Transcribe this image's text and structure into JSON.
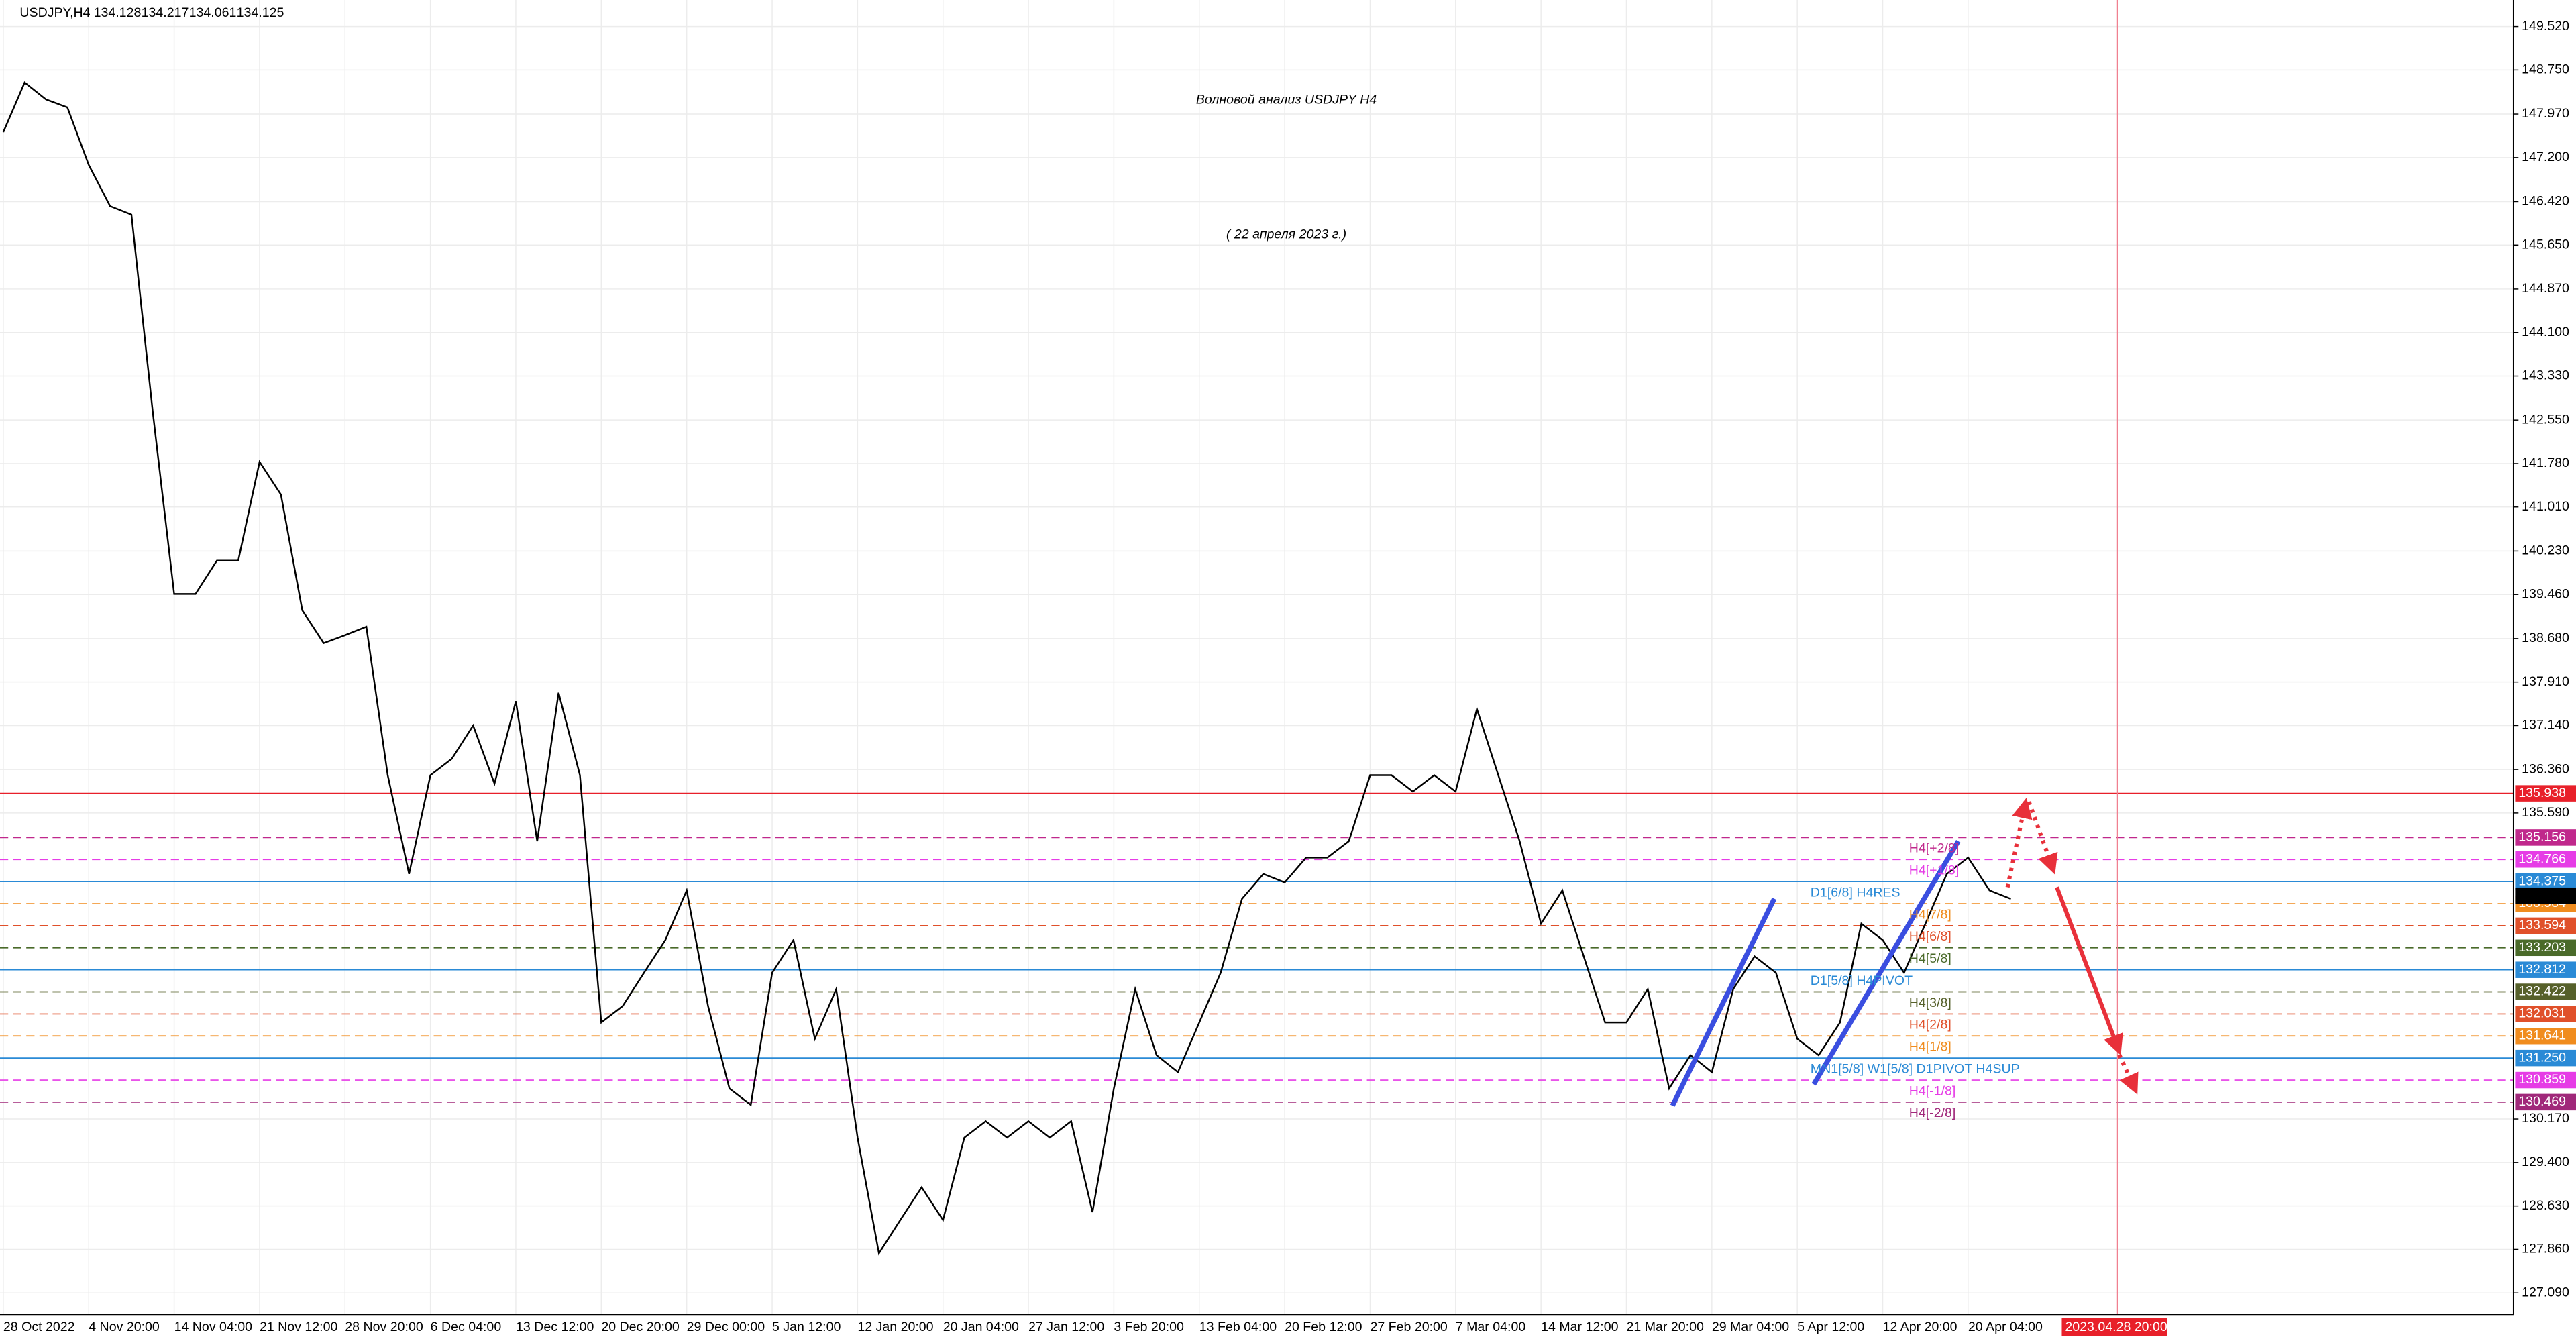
{
  "chart_data": {
    "type": "line",
    "header": {
      "symbol": "USDJPY,H4",
      "ohlc": [
        134.128,
        134.217,
        134.061,
        134.125
      ]
    },
    "title": "Волновой анализ USDJPY H4",
    "subtitle": "( 22 апреля 2023 г.)",
    "color": "#000000",
    "categories": [
      "28 Oct 2022",
      null,
      null,
      null,
      "4 Nov 20:00",
      null,
      null,
      null,
      "14 Nov 04:00",
      null,
      null,
      null,
      "21 Nov 12:00",
      null,
      null,
      null,
      "28 Nov 20:00",
      null,
      null,
      null,
      "6 Dec 04:00",
      null,
      null,
      null,
      "13 Dec 12:00",
      null,
      null,
      null,
      "20 Dec 20:00",
      null,
      null,
      null,
      "29 Dec 00:00",
      null,
      null,
      null,
      "5 Jan 12:00",
      null,
      null,
      null,
      "12 Jan 20:00",
      null,
      null,
      null,
      "20 Jan 04:00",
      null,
      null,
      null,
      "27 Jan 12:00",
      null,
      null,
      null,
      "3 Feb 20:00",
      null,
      null,
      null,
      "13 Feb 04:00",
      null,
      null,
      null,
      "20 Feb 12:00",
      null,
      null,
      null,
      "27 Feb 20:00",
      null,
      null,
      null,
      "7 Mar 04:00",
      null,
      null,
      null,
      "14 Mar 12:00",
      null,
      null,
      null,
      "21 Mar 20:00",
      null,
      null,
      null,
      "29 Mar 04:00",
      null,
      null,
      null,
      "5 Apr 12:00",
      null,
      null,
      null,
      "12 Apr 20:00",
      null,
      null,
      null,
      "20 Apr 04:00",
      null,
      null,
      null,
      null,
      null,
      null,
      "2023.04.28 20:00"
    ],
    "values": [
      147.65,
      148.53,
      148.23,
      148.09,
      147.07,
      146.34,
      146.19,
      142.69,
      139.47,
      139.47,
      140.06,
      140.06,
      141.81,
      141.23,
      139.18,
      138.6,
      138.74,
      138.89,
      136.26,
      134.51,
      136.26,
      136.55,
      137.14,
      136.11,
      137.57,
      135.09,
      137.72,
      136.26,
      131.88,
      132.17,
      132.76,
      133.34,
      134.22,
      132.17,
      130.71,
      130.42,
      132.76,
      133.34,
      131.59,
      132.47,
      129.84,
      127.79,
      128.38,
      128.96,
      128.38,
      129.84,
      130.13,
      129.84,
      130.13,
      129.84,
      130.13,
      128.52,
      130.71,
      132.47,
      131.3,
      131.0,
      131.88,
      132.76,
      134.07,
      134.51,
      134.36,
      134.8,
      134.8,
      135.09,
      136.26,
      136.26,
      135.97,
      136.26,
      135.97,
      137.43,
      136.26,
      135.09,
      133.63,
      134.22,
      133.05,
      131.88,
      131.88,
      132.47,
      130.71,
      131.3,
      131.0,
      132.47,
      133.05,
      132.76,
      131.59,
      131.3,
      131.88,
      133.63,
      133.34,
      132.76,
      133.63,
      134.51,
      134.8,
      134.22,
      134.07,
      null,
      null,
      null,
      null,
      null
    ],
    "ylim": [
      126.71,
      149.99
    ],
    "yticks": [
      {
        "value": 149.52,
        "label": "149.520"
      },
      {
        "value": 148.75,
        "label": "148.750"
      },
      {
        "value": 147.97,
        "label": "147.970"
      },
      {
        "value": 147.2,
        "label": "147.200"
      },
      {
        "value": 146.42,
        "label": "146.420"
      },
      {
        "value": 145.65,
        "label": "145.650"
      },
      {
        "value": 144.87,
        "label": "144.870"
      },
      {
        "value": 144.1,
        "label": "144.100"
      },
      {
        "value": 143.33,
        "label": "143.330"
      },
      {
        "value": 142.55,
        "label": "142.550"
      },
      {
        "value": 141.78,
        "label": "141.780"
      },
      {
        "value": 141.01,
        "label": "141.010"
      },
      {
        "value": 140.23,
        "label": "140.230"
      },
      {
        "value": 139.46,
        "label": "139.460"
      },
      {
        "value": 138.68,
        "label": "138.680"
      },
      {
        "value": 137.91,
        "label": "137.910"
      },
      {
        "value": 137.14,
        "label": "137.140"
      },
      {
        "value": 136.36,
        "label": "136.360"
      },
      {
        "value": 135.59,
        "label": "135.590"
      },
      {
        "value": 130.17,
        "label": "130.170"
      },
      {
        "value": 129.4,
        "label": "129.400"
      },
      {
        "value": 128.63,
        "label": "128.630"
      },
      {
        "value": 127.86,
        "label": "127.860"
      },
      {
        "value": 127.09,
        "label": "127.090"
      }
    ],
    "grid": true,
    "levels": [
      {
        "value": 135.938,
        "price_label": "135.938",
        "text": null,
        "color": "#e8202a",
        "dashed": false
      },
      {
        "value": 135.156,
        "price_label": "135.156",
        "text": "H4[+2/8]",
        "color": "#c0288c",
        "dashed": true
      },
      {
        "value": 134.766,
        "price_label": "134.766",
        "text": "H4[+1/8]",
        "color": "#e63ce6",
        "dashed": true
      },
      {
        "value": 134.375,
        "price_label": "134.375",
        "text": "D1[6/8] H4RES",
        "color": "#2a8ad6",
        "dashed": false
      },
      {
        "value": 133.984,
        "price_label": "133.984",
        "text": "H4[7/8]",
        "color": "#f08c1e",
        "dashed": true
      },
      {
        "value": 133.594,
        "price_label": "133.594",
        "text": "H4[6/8]",
        "color": "#e0502a",
        "dashed": true
      },
      {
        "value": 133.203,
        "price_label": "133.203",
        "text": "H4[5/8]",
        "color": "#4a6a2a",
        "dashed": true
      },
      {
        "value": 132.812,
        "price_label": "132.812",
        "text": "D1[5/8] H4PIVOT",
        "color": "#2a8ad6",
        "dashed": false
      },
      {
        "value": 132.422,
        "price_label": "132.422",
        "text": "H4[3/8]",
        "color": "#56602a",
        "dashed": true
      },
      {
        "value": 132.031,
        "price_label": "132.031",
        "text": "H4[2/8]",
        "color": "#e0502a",
        "dashed": true
      },
      {
        "value": 131.641,
        "price_label": "131.641",
        "text": "H4[1/8]",
        "color": "#f08c1e",
        "dashed": true
      },
      {
        "value": 131.25,
        "price_label": "131.250",
        "text": "MN1[5/8] W1[5/8] D1PIVOT H4SUP",
        "color": "#2a8ad6",
        "dashed": false
      },
      {
        "value": 130.859,
        "price_label": "130.859",
        "text": "H4[-1/8]",
        "color": "#e63ce6",
        "dashed": true
      },
      {
        "value": 130.469,
        "price_label": "130.469",
        "text": "H4[-2/8]",
        "color": "#a0287a",
        "dashed": true
      }
    ]
  }
}
